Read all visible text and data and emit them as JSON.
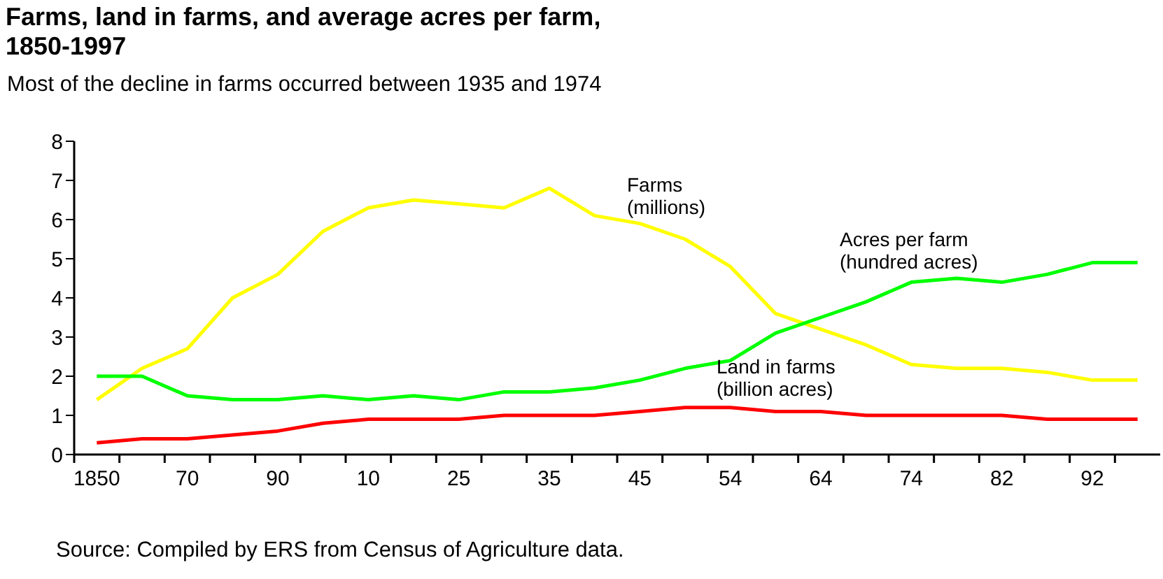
{
  "chart_data": {
    "type": "line",
    "title": "Farms, land in farms, and average acres per farm,\n1850-1997",
    "subtitle": "Most of the decline in farms occurred between 1935 and 1974",
    "categories": [
      "1850",
      null,
      "70",
      null,
      "90",
      null,
      "10",
      null,
      "25",
      null,
      "35",
      null,
      "45",
      null,
      "54",
      null,
      "64",
      null,
      "74",
      null,
      "82",
      null,
      "92",
      null
    ],
    "series": [
      {
        "name": "Farms\n(millions)",
        "color": "#ffff00",
        "values": [
          1.4,
          2.2,
          2.7,
          4.0,
          4.6,
          5.7,
          6.3,
          6.5,
          6.4,
          6.3,
          6.8,
          6.1,
          5.9,
          5.5,
          4.8,
          3.6,
          3.2,
          2.8,
          2.3,
          2.2,
          2.2,
          2.1,
          1.9,
          1.9
        ]
      },
      {
        "name": "Acres per farm\n(hundred acres)",
        "color": "#00ff00",
        "values": [
          2.0,
          2.0,
          1.5,
          1.4,
          1.4,
          1.5,
          1.4,
          1.5,
          1.4,
          1.6,
          1.6,
          1.7,
          1.9,
          2.2,
          2.4,
          3.1,
          3.5,
          3.9,
          4.4,
          4.5,
          4.4,
          4.6,
          4.9,
          4.9
        ]
      },
      {
        "name": "Land in farms\n(billion acres)",
        "color": "#ff0000",
        "values": [
          0.3,
          0.4,
          0.4,
          0.5,
          0.6,
          0.8,
          0.9,
          0.9,
          0.9,
          1.0,
          1.0,
          1.0,
          1.1,
          1.2,
          1.2,
          1.1,
          1.1,
          1.0,
          1.0,
          1.0,
          1.0,
          0.9,
          0.9,
          0.9
        ]
      }
    ],
    "ylim": [
      0,
      8
    ],
    "yticks": [
      0,
      1,
      2,
      3,
      4,
      5,
      6,
      7,
      8
    ],
    "grid": false,
    "legend": false,
    "marker": "none",
    "line_style": "solid",
    "annotations": [
      "Source: Compiled by ERS from Census of Agriculture data."
    ]
  }
}
